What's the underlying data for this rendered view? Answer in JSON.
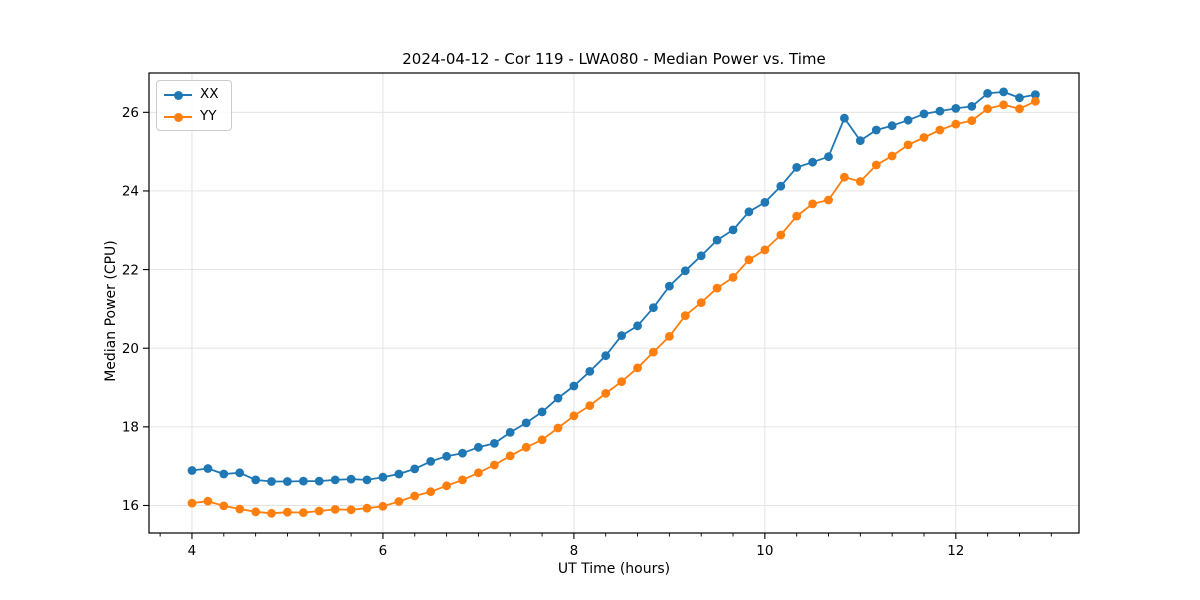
{
  "chart_data": {
    "type": "line",
    "title": "2024-04-12 - Cor 119 - LWA080 - Median Power vs. Time",
    "xlabel": "UT Time (hours)",
    "ylabel": "Median Power (CPU)",
    "legend_position": "upper-left",
    "grid": true,
    "xlim": [
      3.55,
      13.29
    ],
    "ylim": [
      15.3,
      27.0
    ],
    "xticks": [
      4,
      6,
      8,
      10,
      12
    ],
    "yticks": [
      16,
      18,
      20,
      22,
      24,
      26
    ],
    "x_minor_tick_step": 0.3333,
    "x": [
      4.0,
      4.167,
      4.333,
      4.5,
      4.667,
      4.833,
      5.0,
      5.167,
      5.333,
      5.5,
      5.667,
      5.833,
      6.0,
      6.167,
      6.333,
      6.5,
      6.667,
      6.833,
      7.0,
      7.167,
      7.333,
      7.5,
      7.667,
      7.833,
      8.0,
      8.167,
      8.333,
      8.5,
      8.667,
      8.833,
      9.0,
      9.167,
      9.333,
      9.5,
      9.667,
      9.833,
      10.0,
      10.167,
      10.333,
      10.5,
      10.667,
      10.833,
      11.0,
      11.167,
      11.333,
      11.5,
      11.667,
      11.833,
      12.0,
      12.167,
      12.333,
      12.5,
      12.667,
      12.833
    ],
    "series": [
      {
        "name": "XX",
        "color": "#1f77b4",
        "values": [
          16.89,
          16.94,
          16.8,
          16.83,
          16.65,
          16.61,
          16.61,
          16.62,
          16.62,
          16.65,
          16.67,
          16.65,
          16.72,
          16.8,
          16.93,
          17.12,
          17.25,
          17.33,
          17.48,
          17.58,
          17.86,
          18.1,
          18.38,
          18.73,
          19.04,
          19.41,
          19.81,
          20.32,
          20.57,
          21.03,
          21.58,
          21.97,
          22.35,
          22.75,
          23.01,
          23.47,
          23.71,
          24.12,
          24.6,
          24.73,
          24.87,
          25.85,
          25.28,
          25.55,
          25.66,
          25.8,
          25.96,
          26.03,
          26.1,
          26.15,
          26.48,
          26.52,
          26.37,
          26.45
        ]
      },
      {
        "name": "YY",
        "color": "#ff7f0e",
        "values": [
          16.06,
          16.11,
          15.99,
          15.91,
          15.84,
          15.8,
          15.83,
          15.82,
          15.86,
          15.9,
          15.89,
          15.93,
          15.98,
          16.1,
          16.24,
          16.35,
          16.5,
          16.65,
          16.83,
          17.03,
          17.26,
          17.48,
          17.67,
          17.97,
          18.28,
          18.54,
          18.85,
          19.15,
          19.5,
          19.9,
          20.3,
          20.83,
          21.16,
          21.53,
          21.8,
          22.25,
          22.5,
          22.88,
          23.36,
          23.67,
          23.77,
          24.35,
          24.24,
          24.66,
          24.89,
          25.17,
          25.36,
          25.55,
          25.7,
          25.79,
          26.09,
          26.19,
          26.09,
          26.28
        ]
      }
    ],
    "style": {
      "background": "#ffffff",
      "grid_color": "#e0e0e0",
      "spine_color": "#000000",
      "tick_color": "#000000",
      "text_color": "#000000",
      "legend_border_color": "#cccccc",
      "marker": "circle"
    }
  }
}
